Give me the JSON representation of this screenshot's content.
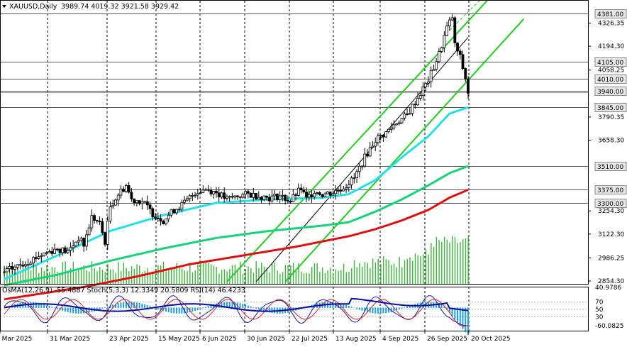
{
  "header": {
    "symbol": "XAUUSD,Daily",
    "ohlc": "3989.74 4019.32 3921.58 3929.42"
  },
  "indicator_header": "OsMA(12,26,9) -55.4887  Stoch(5,3,3) 12.3349 20.5809  RSI(14) 46.4233",
  "colors": {
    "candle": "#000000",
    "ema_cyan": "#22e0e8",
    "ema_green": "#16d27a",
    "ema_red": "#e01010",
    "channel": "#22cc22",
    "level_line": "#555555",
    "volume": "#3cb43c",
    "osma": "#1ea0dc",
    "stoch_main": "#1a1aa0",
    "stoch_signal": "#d22828",
    "rsi": "#0a0aa0"
  },
  "chart_data": {
    "type": "candlestick",
    "title": "XAUUSD,Daily",
    "x_axis": {
      "labels": [
        "7 Mar 2025",
        "31 Mar 2025",
        "23 Apr 2025",
        "15 May 2025",
        "6 Jun 2025",
        "30 Jun 2025",
        "22 Jul 2025",
        "13 Aug 2025",
        "4 Sep 2025",
        "26 Sep 2025",
        "20 Oct 2025"
      ]
    },
    "y_axis": {
      "ticks": [
        "4326.35",
        "4194.30",
        "4058.25",
        "3790.35",
        "3658.30",
        "3254.30",
        "3122.30",
        "2986.25",
        "2854.30"
      ],
      "range": [
        2854.3,
        4420
      ]
    },
    "price_levels": [
      {
        "value": 4381.0,
        "label": "4381.00"
      },
      {
        "value": 4105.0,
        "label": "4105.00"
      },
      {
        "value": 4010.0,
        "label": "4010.00"
      },
      {
        "value": 3940.0,
        "label": "3940.00"
      },
      {
        "value": 3845.0,
        "label": "3845.00"
      },
      {
        "value": 3510.0,
        "label": "3510.00"
      },
      {
        "value": 3375.0,
        "label": "3375.00"
      },
      {
        "value": 3300.0,
        "label": "3300.00"
      }
    ],
    "current_price": 3929.42,
    "series": [
      {
        "kind": "ohlc",
        "anchors": [
          [
            0,
            2905
          ],
          [
            8,
            2960
          ],
          [
            14,
            3005
          ],
          [
            20,
            3040
          ],
          [
            24,
            3020
          ],
          [
            28,
            3100
          ],
          [
            30,
            3060
          ],
          [
            33,
            3220
          ],
          [
            36,
            3180
          ],
          [
            38,
            3080
          ],
          [
            40,
            3280
          ],
          [
            43,
            3350
          ],
          [
            46,
            3400
          ],
          [
            48,
            3320
          ],
          [
            52,
            3310
          ],
          [
            56,
            3240
          ],
          [
            60,
            3200
          ],
          [
            64,
            3260
          ],
          [
            68,
            3300
          ],
          [
            72,
            3360
          ],
          [
            76,
            3380
          ],
          [
            80,
            3360
          ],
          [
            84,
            3320
          ],
          [
            88,
            3340
          ],
          [
            92,
            3350
          ],
          [
            96,
            3340
          ],
          [
            100,
            3330
          ],
          [
            104,
            3340
          ],
          [
            108,
            3310
          ],
          [
            110,
            3350
          ],
          [
            112,
            3380
          ],
          [
            114,
            3320
          ],
          [
            117,
            3370
          ],
          [
            120,
            3350
          ],
          [
            124,
            3360
          ],
          [
            128,
            3390
          ],
          [
            132,
            3440
          ],
          [
            136,
            3560
          ],
          [
            140,
            3660
          ],
          [
            144,
            3700
          ],
          [
            148,
            3760
          ],
          [
            152,
            3800
          ],
          [
            156,
            3900
          ],
          [
            160,
            4000
          ],
          [
            164,
            4150
          ],
          [
            167,
            4300
          ],
          [
            169,
            4360
          ],
          [
            170,
            4200
          ],
          [
            172,
            4130
          ],
          [
            174,
            4010
          ],
          [
            175,
            3929
          ]
        ]
      }
    ],
    "moving_averages": [
      {
        "color": "ema_cyan",
        "anchors": [
          [
            0,
            2865
          ],
          [
            20,
            3000
          ],
          [
            40,
            3140
          ],
          [
            60,
            3230
          ],
          [
            80,
            3300
          ],
          [
            100,
            3320
          ],
          [
            120,
            3330
          ],
          [
            130,
            3350
          ],
          [
            140,
            3430
          ],
          [
            150,
            3560
          ],
          [
            160,
            3680
          ],
          [
            168,
            3810
          ],
          [
            175,
            3845
          ]
        ]
      },
      {
        "color": "ema_green",
        "anchors": [
          [
            0,
            2830
          ],
          [
            20,
            2890
          ],
          [
            40,
            2970
          ],
          [
            60,
            3040
          ],
          [
            80,
            3100
          ],
          [
            100,
            3140
          ],
          [
            120,
            3170
          ],
          [
            130,
            3190
          ],
          [
            140,
            3250
          ],
          [
            150,
            3320
          ],
          [
            160,
            3400
          ],
          [
            168,
            3470
          ],
          [
            175,
            3510
          ]
        ]
      },
      {
        "color": "ema_red",
        "anchors": [
          [
            0,
            2750
          ],
          [
            30,
            2820
          ],
          [
            50,
            2880
          ],
          [
            70,
            2950
          ],
          [
            90,
            3000
          ],
          [
            110,
            3050
          ],
          [
            130,
            3110
          ],
          [
            140,
            3150
          ],
          [
            150,
            3200
          ],
          [
            160,
            3260
          ],
          [
            168,
            3330
          ],
          [
            175,
            3375
          ]
        ]
      }
    ],
    "channel_lines": [
      {
        "from": [
          84,
          2850
        ],
        "to": [
          196,
          4680
        ],
        "style": "solid"
      },
      {
        "from": [
          106,
          2850
        ],
        "to": [
          196,
          4350
        ],
        "style": "solid"
      },
      {
        "from": [
          95,
          2850
        ],
        "to": [
          175,
          4245
        ],
        "style": "thin-black"
      },
      {
        "from": [
          168,
          4285
        ],
        "to": [
          185,
          4540
        ],
        "style": "dashed"
      }
    ],
    "indicators": {
      "osma": -55.4887,
      "stoch_main": 12.3349,
      "stoch_signal": 20.5809,
      "rsi": 46.4233,
      "labels": [
        "40.9786",
        "70",
        "50",
        "30",
        "-60.0825"
      ]
    }
  }
}
